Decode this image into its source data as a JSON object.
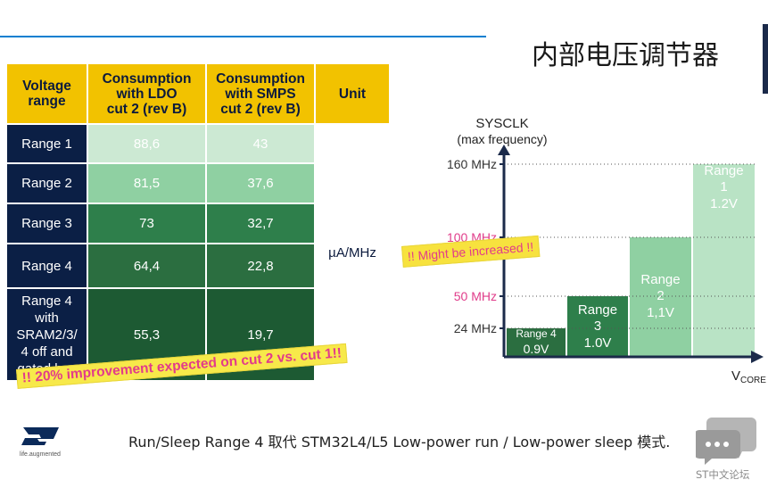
{
  "title": "内部电压调节器",
  "table": {
    "headers": [
      "Voltage\nrange",
      "Consumption\nwith LDO\ncut 2 (rev B)",
      "Consumption\nwith SMPS\ncut 2 (rev B)",
      "Unit"
    ],
    "rows": [
      {
        "label": "Range 1",
        "ldo": "88,6",
        "smps": "43"
      },
      {
        "label": "Range 2",
        "ldo": "81,5",
        "smps": "37,6"
      },
      {
        "label": "Range 3",
        "ldo": "73",
        "smps": "32,7"
      },
      {
        "label": "Range 4",
        "ldo": "64,4",
        "smps": "22,8"
      },
      {
        "label": "Range 4\nwith\nSRAM2/3/\n4 off and\ngated bus",
        "ldo": "55,3",
        "smps": "19,7"
      }
    ],
    "unit": "µA/MHz",
    "colors": [
      "#cce9d3",
      "#8fd0a2",
      "#2e7f4b",
      "#2b6e40",
      "#1d5a33"
    ]
  },
  "stamp_improvement": "!! 20% improvement expected on cut 2 vs. cut 1!!",
  "stamp_might": "!! Might be increased !!",
  "chart_data": {
    "type": "bar",
    "ylabel": "SYSCLK\n(max frequency)",
    "xlabel": "V",
    "xlabel_sub": "CORE",
    "y_ticks": [
      {
        "label": "160 MHz",
        "value": 160,
        "color": "#333333"
      },
      {
        "label": "100 MHz",
        "value": 100,
        "color": "#e03c8a"
      },
      {
        "label": "50 MHz",
        "value": 50,
        "color": "#e03c8a"
      },
      {
        "label": "24 MHz",
        "value": 24,
        "color": "#333333"
      }
    ],
    "bars": [
      {
        "name": "Range 4",
        "voltage": "0.9V",
        "value": 24,
        "color": "#2b6e40"
      },
      {
        "name": "Range 3",
        "voltage": "1.0V",
        "value": 50,
        "color": "#2e7f4b"
      },
      {
        "name": "Range 2",
        "voltage": "1,1V",
        "value": 100,
        "color": "#8fd0a2"
      },
      {
        "name": "Range 1",
        "voltage": "1.2V",
        "value": 160,
        "color": "#b9e3c5"
      }
    ]
  },
  "footer": "Run/Sleep Range 4 取代 STM32L4/L5 Low-power run / Low-power sleep 模式.",
  "logo_tagline": "life.augmented",
  "watermark": "ST中文论坛"
}
